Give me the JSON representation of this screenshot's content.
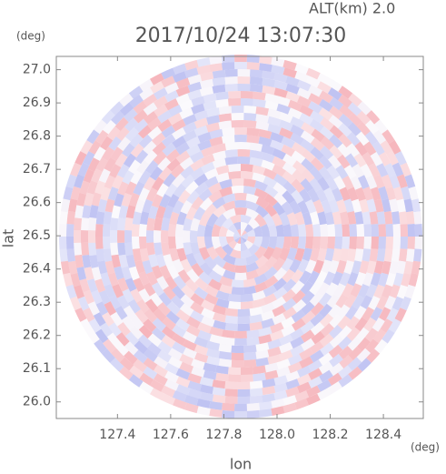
{
  "chart_data": {
    "type": "ppi",
    "title": "2017/10/24 13:07:30",
    "annotation": "ALT(km)  2.0",
    "xlabel": "lon",
    "ylabel": "lat",
    "xunit": "(deg)",
    "yunit": "(deg)",
    "xlim": [
      127.17,
      128.55
    ],
    "ylim": [
      25.95,
      27.04
    ],
    "xticks": [
      127.4,
      127.6,
      127.8,
      {
        "value": 128,
        "label": "128.0"
      },
      128.2,
      128.4
    ],
    "yticks": [
      {
        "value": 26,
        "label": "26.0"
      },
      26.1,
      26.2,
      26.3,
      26.4,
      26.5,
      26.6,
      26.7,
      26.8,
      26.9,
      {
        "value": 27,
        "label": "27.0"
      }
    ]
  }
}
